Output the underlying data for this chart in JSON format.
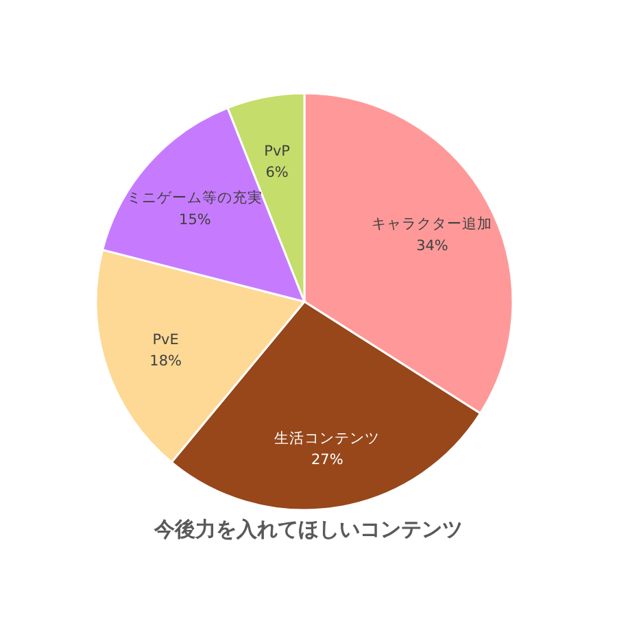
{
  "chart_data": {
    "type": "pie",
    "title": "今後力を入れてほしいコンテンツ",
    "categories": [
      "キャラクター追加",
      "生活コンテンツ",
      "PvE",
      "ミニゲーム等の充実",
      "PvP"
    ],
    "values": [
      34,
      27,
      18,
      15,
      6
    ],
    "colors": [
      "#ff9999",
      "#97471a",
      "#fdd995",
      "#c67bff",
      "#c5dd6a"
    ],
    "value_labels": [
      "34%",
      "27%",
      "18%",
      "15%",
      "6%"
    ]
  }
}
